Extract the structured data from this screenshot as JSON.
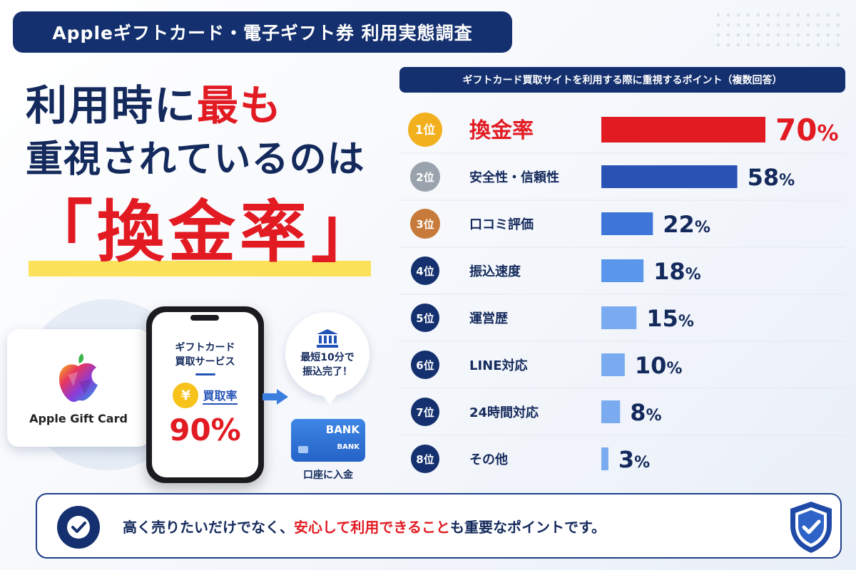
{
  "header": {
    "title": "Appleギフトカード・電子ギフト券 利用実態調査"
  },
  "headline": {
    "line1_a": "利用時に",
    "line1_b": "最も",
    "line2": "重視されているのは",
    "line3": "「換金率」"
  },
  "illustration": {
    "gift_card_label": "Apple Gift Card",
    "phone_title_1": "ギフトカード",
    "phone_title_2": "買取サービス",
    "yen_symbol": "¥",
    "rate_label": "買取率",
    "rate_value": "90%",
    "bubble_line1": "最短10分で",
    "bubble_line2": "振込完了！",
    "bank_text": "BANK",
    "bank_text_small": "BANK",
    "bank_label": "口座に入金"
  },
  "chart_data": {
    "type": "bar",
    "orientation": "horizontal",
    "title": "ギフトカード買取サイトを利用する際に重視するポイント（複数回答）",
    "ranks": [
      "1位",
      "2位",
      "3位",
      "4位",
      "5位",
      "6位",
      "7位",
      "8位"
    ],
    "categories": [
      "換金率",
      "安全性・信頼性",
      "口コミ評価",
      "振込速度",
      "運営歴",
      "LINE対応",
      "24時間対応",
      "その他"
    ],
    "values": [
      70,
      58,
      22,
      18,
      15,
      10,
      8,
      3
    ],
    "unit": "%",
    "xlim": [
      0,
      70
    ],
    "grid": false,
    "colors": {
      "top": "#e21b23",
      "second": "#2853b4",
      "third": "#3d76d8",
      "rest": "#5a96eb",
      "light": "#7aaaf0",
      "medal_gold": "#f2b01e",
      "medal_silver": "#9aa3ad",
      "medal_bronze": "#c77a3a",
      "rank_navy": "#14306e"
    }
  },
  "bottom": {
    "msg_a": "高く売りたいだけでなく、",
    "msg_b": "安心して利用できること",
    "msg_c": "も重要なポイントです。"
  }
}
